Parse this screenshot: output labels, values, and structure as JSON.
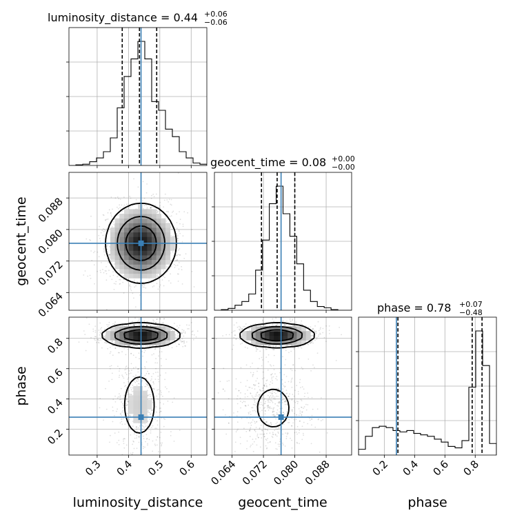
{
  "chart_data": {
    "type": "corner",
    "parameters": [
      "luminosity_distance",
      "geocent_time",
      "phase"
    ],
    "axis_labels": {
      "luminosity_distance": "luminosity_distance",
      "geocent_time": "geocent_time",
      "phase": "phase"
    },
    "ranges": {
      "luminosity_distance": [
        0.21,
        0.65
      ],
      "geocent_time": [
        0.0595,
        0.0945
      ],
      "phase": [
        0.03,
        0.94
      ]
    },
    "ticks": {
      "luminosity_distance": [
        0.3,
        0.4,
        0.5,
        0.6
      ],
      "geocent_time": [
        0.064,
        0.072,
        0.08,
        0.088
      ],
      "phase": [
        0.2,
        0.4,
        0.6,
        0.8
      ]
    },
    "tick_labels": {
      "luminosity_distance": [
        "0.3",
        "0.4",
        "0.5",
        "0.6"
      ],
      "geocent_time": [
        "0.064",
        "0.072",
        "0.080",
        "0.088"
      ],
      "phase": [
        "0.2",
        "0.4",
        "0.6",
        "0.8"
      ]
    },
    "truths": {
      "luminosity_distance": 0.44,
      "geocent_time": 0.0765,
      "phase": 0.28
    },
    "titles": [
      {
        "param": "luminosity_distance",
        "text": "luminosity_distance = 0.44",
        "plus": "+0.06",
        "minus": "−0.06"
      },
      {
        "param": "geocent_time",
        "text": "geocent_time = 0.08",
        "plus": "+0.00",
        "minus": "−0.00"
      },
      {
        "param": "phase",
        "text": "phase = 0.78",
        "plus": "+0.07",
        "minus": "−0.48"
      }
    ],
    "quantiles": {
      "luminosity_distance": [
        0.38,
        0.435,
        0.49
      ],
      "geocent_time": [
        0.0715,
        0.0755,
        0.08
      ],
      "phase": [
        0.29,
        0.78,
        0.845
      ]
    },
    "histograms": {
      "luminosity_distance": {
        "edges": [
          0.21,
          0.232,
          0.254,
          0.276,
          0.298,
          0.32,
          0.342,
          0.364,
          0.386,
          0.408,
          0.43,
          0.452,
          0.474,
          0.496,
          0.518,
          0.54,
          0.562,
          0.584,
          0.606,
          0.628,
          0.65
        ],
        "counts": [
          0.0,
          0.005,
          0.01,
          0.03,
          0.06,
          0.11,
          0.22,
          0.46,
          0.71,
          0.85,
          0.99,
          0.85,
          0.51,
          0.44,
          0.29,
          0.23,
          0.11,
          0.06,
          0.02,
          0.01
        ]
      },
      "geocent_time": {
        "edges": [
          0.0595,
          0.06125,
          0.063,
          0.06475,
          0.0665,
          0.06825,
          0.07,
          0.07175,
          0.0735,
          0.07525,
          0.077,
          0.07875,
          0.0805,
          0.08225,
          0.084,
          0.08575,
          0.0875,
          0.08925,
          0.091,
          0.09275,
          0.0945
        ],
        "counts": [
          0.0,
          0.005,
          0.015,
          0.04,
          0.07,
          0.13,
          0.32,
          0.56,
          0.85,
          0.99,
          0.77,
          0.59,
          0.37,
          0.16,
          0.07,
          0.03,
          0.02,
          0.005,
          0.0,
          0.0
        ]
      },
      "phase": {
        "edges": [
          0.03,
          0.0755,
          0.121,
          0.1665,
          0.212,
          0.2575,
          0.303,
          0.3485,
          0.394,
          0.4395,
          0.485,
          0.5305,
          0.576,
          0.6215,
          0.667,
          0.7125,
          0.758,
          0.8035,
          0.849,
          0.8945,
          0.94
        ],
        "counts": [
          0.04,
          0.13,
          0.19,
          0.2,
          0.19,
          0.17,
          0.16,
          0.17,
          0.15,
          0.14,
          0.13,
          0.11,
          0.09,
          0.06,
          0.05,
          0.1,
          0.47,
          0.86,
          0.62,
          0.08
        ]
      }
    },
    "densities_2d": [
      {
        "x": "luminosity_distance",
        "y": "geocent_time",
        "components": [
          {
            "cx": 0.44,
            "cy": 0.0765,
            "sx": 0.05,
            "sy": 0.0045,
            "w": 1.0
          }
        ]
      },
      {
        "x": "luminosity_distance",
        "y": "phase",
        "components": [
          {
            "cx": 0.44,
            "cy": 0.82,
            "sx": 0.055,
            "sy": 0.035,
            "w": 0.68
          },
          {
            "cx": 0.435,
            "cy": 0.36,
            "sx": 0.038,
            "sy": 0.15,
            "w": 0.32
          }
        ]
      },
      {
        "x": "geocent_time",
        "y": "phase",
        "components": [
          {
            "cx": 0.0755,
            "cy": 0.82,
            "sx": 0.0042,
            "sy": 0.035,
            "w": 0.68
          },
          {
            "cx": 0.0745,
            "cy": 0.34,
            "sx": 0.0045,
            "sy": 0.14,
            "w": 0.32
          }
        ]
      }
    ]
  }
}
